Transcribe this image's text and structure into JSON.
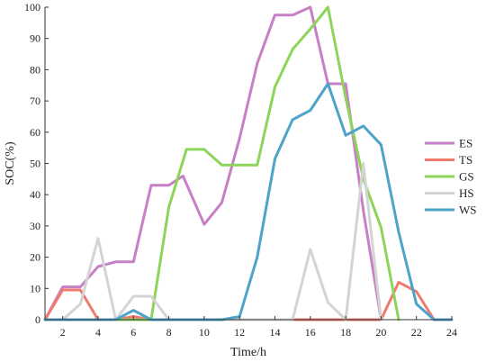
{
  "chart_data": {
    "type": "line",
    "xlabel": "Time/h",
    "ylabel": "SOC(%)",
    "xlim": [
      1,
      24
    ],
    "ylim": [
      0,
      100
    ],
    "xticks": [
      2,
      4,
      6,
      8,
      10,
      12,
      14,
      16,
      18,
      20,
      22,
      24
    ],
    "yticks": [
      0,
      10,
      20,
      30,
      40,
      50,
      60,
      70,
      80,
      90,
      100
    ],
    "legend_position": "right",
    "series": [
      {
        "name": "ES",
        "color": "#c77fc7",
        "points": [
          [
            1,
            0
          ],
          [
            2,
            10.5
          ],
          [
            3,
            10.5
          ],
          [
            4,
            17
          ],
          [
            5,
            18.5
          ],
          [
            6,
            18.5
          ],
          [
            7,
            43
          ],
          [
            8,
            43
          ],
          [
            8.8,
            46
          ],
          [
            10,
            30.5
          ],
          [
            11,
            37.5
          ],
          [
            12,
            58
          ],
          [
            13,
            82
          ],
          [
            14,
            97.5
          ],
          [
            15,
            97.5
          ],
          [
            16,
            100
          ],
          [
            17,
            75.5
          ],
          [
            18,
            75.5
          ],
          [
            19,
            35
          ],
          [
            20,
            0
          ]
        ]
      },
      {
        "name": "TS",
        "color": "#f07a6e",
        "points": [
          [
            1,
            0
          ],
          [
            2,
            9.5
          ],
          [
            3,
            9.5
          ],
          [
            4,
            0
          ],
          [
            5,
            0
          ],
          [
            6,
            1
          ],
          [
            7,
            0
          ],
          [
            15,
            0
          ],
          [
            16,
            0
          ],
          [
            17,
            0
          ],
          [
            18,
            0
          ],
          [
            19,
            0
          ],
          [
            20,
            0
          ],
          [
            21,
            12
          ],
          [
            22,
            9
          ],
          [
            23,
            0
          ]
        ]
      },
      {
        "name": "GS",
        "color": "#8cd45a",
        "points": [
          [
            5,
            0
          ],
          [
            6,
            0
          ],
          [
            7,
            0
          ],
          [
            8,
            36
          ],
          [
            9,
            54.5
          ],
          [
            10,
            54.5
          ],
          [
            11,
            49.5
          ],
          [
            12,
            49.5
          ],
          [
            13,
            49.5
          ],
          [
            14,
            74.5
          ],
          [
            15,
            86.5
          ],
          [
            16,
            93
          ],
          [
            17,
            100
          ],
          [
            18,
            71
          ],
          [
            19,
            45
          ],
          [
            20,
            29.5
          ],
          [
            21,
            0
          ]
        ]
      },
      {
        "name": "HS",
        "color": "#d4d4d4",
        "points": [
          [
            1,
            0
          ],
          [
            2,
            0
          ],
          [
            3,
            5
          ],
          [
            4,
            26
          ],
          [
            5,
            0
          ],
          [
            6,
            7.5
          ],
          [
            7,
            7.5
          ],
          [
            8,
            0
          ],
          [
            15,
            0
          ],
          [
            16,
            22.5
          ],
          [
            17,
            5.5
          ],
          [
            18,
            0
          ],
          [
            19,
            50
          ],
          [
            20,
            0
          ]
        ]
      },
      {
        "name": "WS",
        "color": "#4da3c8",
        "points": [
          [
            1,
            0
          ],
          [
            5,
            0
          ],
          [
            6,
            3
          ],
          [
            7,
            0
          ],
          [
            8,
            0
          ],
          [
            9,
            0
          ],
          [
            10,
            0
          ],
          [
            11,
            0
          ],
          [
            12,
            1
          ],
          [
            13,
            20
          ],
          [
            14,
            51.5
          ],
          [
            15,
            64
          ],
          [
            16,
            67
          ],
          [
            17,
            75.5
          ],
          [
            18,
            59
          ],
          [
            19,
            62
          ],
          [
            20,
            56
          ],
          [
            21,
            28
          ],
          [
            22,
            5
          ],
          [
            23,
            0
          ],
          [
            24,
            0
          ]
        ]
      }
    ]
  }
}
